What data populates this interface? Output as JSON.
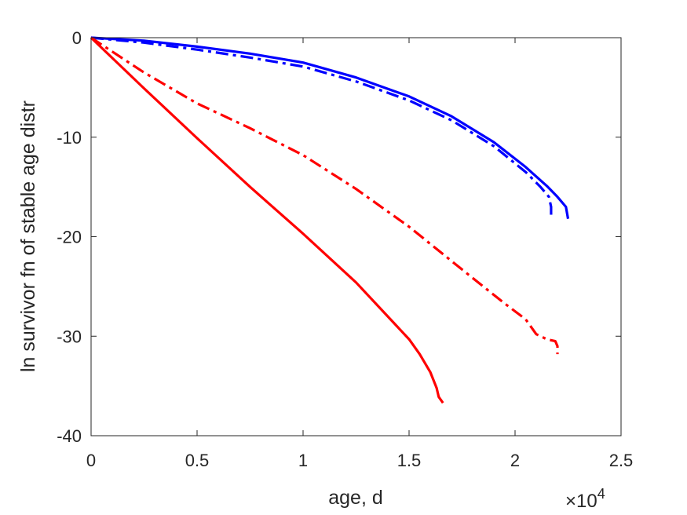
{
  "chart_data": {
    "type": "line",
    "title": "",
    "xlabel": "age, d",
    "ylabel": "ln survivor fn of stable age distr",
    "x_multiplier_base": "×10",
    "x_multiplier_exp": "4",
    "xlim": [
      0,
      2.5
    ],
    "ylim": [
      -40,
      0
    ],
    "xticks": [
      0,
      0.5,
      1,
      1.5,
      2,
      2.5
    ],
    "xtick_labels": [
      "0",
      "0.5",
      "1",
      "1.5",
      "2",
      "2.5"
    ],
    "yticks": [
      0,
      -10,
      -20,
      -30,
      -40
    ],
    "ytick_labels": [
      "0",
      "-10",
      "-20",
      "-30",
      "-40"
    ],
    "grid": false,
    "legend": "none",
    "series": [
      {
        "color": "#0000ff",
        "style": "solid",
        "x": [
          0,
          0.25,
          0.5,
          0.75,
          1.0,
          1.25,
          1.5,
          1.7,
          1.9,
          2.05,
          2.15,
          2.2,
          2.24,
          2.25
        ],
        "y": [
          0,
          -0.3,
          -0.9,
          -1.6,
          -2.5,
          -4.0,
          -5.9,
          -7.9,
          -10.5,
          -13.0,
          -14.9,
          -16.0,
          -17.0,
          -18.2
        ]
      },
      {
        "color": "#0000ff",
        "style": "dashdot",
        "x": [
          0,
          0.25,
          0.5,
          0.75,
          1.0,
          1.25,
          1.5,
          1.7,
          1.9,
          2.05,
          2.12,
          2.16,
          2.17,
          2.17
        ],
        "y": [
          0,
          -0.5,
          -1.2,
          -2.0,
          -2.9,
          -4.4,
          -6.3,
          -8.3,
          -10.9,
          -13.5,
          -15.0,
          -16.0,
          -17.0,
          -18.2
        ]
      },
      {
        "color": "#ff0000",
        "style": "dashdot",
        "x": [
          0,
          0.25,
          0.5,
          0.75,
          1.0,
          1.25,
          1.5,
          1.75,
          1.95,
          2.05,
          2.1,
          2.15,
          2.19,
          2.2,
          2.2
        ],
        "y": [
          0,
          -3.5,
          -6.6,
          -9.1,
          -11.8,
          -15.2,
          -19.0,
          -23.3,
          -26.7,
          -28.3,
          -29.8,
          -30.3,
          -30.5,
          -31.0,
          -31.8
        ]
      },
      {
        "color": "#ff0000",
        "style": "solid",
        "x": [
          0,
          0.25,
          0.5,
          0.75,
          1.0,
          1.25,
          1.5,
          1.55,
          1.6,
          1.63,
          1.64,
          1.66
        ],
        "y": [
          0,
          -5.1,
          -10.1,
          -15.0,
          -19.7,
          -24.6,
          -30.3,
          -31.8,
          -33.6,
          -35.2,
          -36.1,
          -36.7
        ]
      }
    ]
  }
}
